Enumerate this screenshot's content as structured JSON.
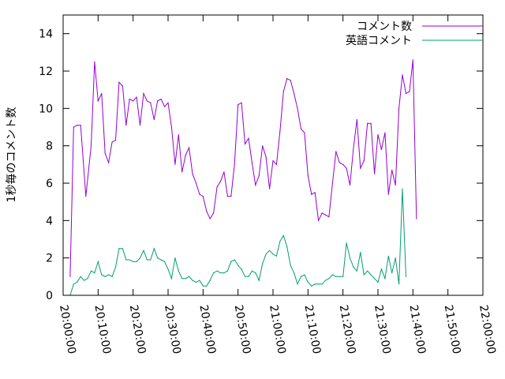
{
  "chart_data": {
    "type": "line",
    "ylabel": "1秒毎のコメント数",
    "xlabel": "",
    "ylim": [
      0,
      15
    ],
    "xlim": [
      "20:00:00",
      "22:00:00"
    ],
    "yticks": [
      "0",
      "2",
      "4",
      "6",
      "8",
      "10",
      "12",
      "14"
    ],
    "xticks": [
      "20:00:00",
      "20:10:00",
      "20:20:00",
      "20:30:00",
      "20:40:00",
      "20:50:00",
      "21:00:00",
      "21:10:00",
      "21:20:00",
      "21:30:00",
      "21:40:00",
      "21:50:00",
      "22:00:00"
    ],
    "grid": false,
    "legend_position": "top-right",
    "series": [
      {
        "name": "コメント数",
        "color": "#9400d3",
        "points": [
          [
            "20:02:00",
            1.0
          ],
          [
            "20:03:00",
            9.0
          ],
          [
            "20:04:00",
            9.1
          ],
          [
            "20:05:00",
            9.1
          ],
          [
            "20:06:30",
            5.3
          ],
          [
            "20:08:00",
            8.0
          ],
          [
            "20:09:00",
            12.5
          ],
          [
            "20:10:00",
            10.4
          ],
          [
            "20:11:00",
            10.8
          ],
          [
            "20:12:00",
            7.6
          ],
          [
            "20:13:00",
            7.1
          ],
          [
            "20:14:00",
            8.2
          ],
          [
            "20:15:00",
            8.3
          ],
          [
            "20:16:00",
            11.4
          ],
          [
            "20:17:00",
            11.2
          ],
          [
            "20:18:00",
            9.1
          ],
          [
            "20:19:00",
            10.5
          ],
          [
            "20:20:00",
            10.4
          ],
          [
            "20:21:00",
            10.6
          ],
          [
            "20:22:00",
            9.1
          ],
          [
            "20:23:00",
            10.8
          ],
          [
            "20:24:00",
            10.4
          ],
          [
            "20:25:00",
            10.3
          ],
          [
            "20:26:00",
            9.4
          ],
          [
            "20:27:00",
            10.4
          ],
          [
            "20:28:00",
            10.5
          ],
          [
            "20:29:00",
            10.1
          ],
          [
            "20:30:00",
            10.3
          ],
          [
            "20:31:00",
            9.0
          ],
          [
            "20:32:00",
            7.0
          ],
          [
            "20:33:00",
            8.6
          ],
          [
            "20:34:00",
            6.6
          ],
          [
            "20:35:00",
            7.5
          ],
          [
            "20:36:00",
            7.9
          ],
          [
            "20:37:00",
            6.5
          ],
          [
            "20:38:00",
            6.0
          ],
          [
            "20:39:00",
            5.4
          ],
          [
            "20:40:00",
            5.3
          ],
          [
            "20:41:00",
            4.5
          ],
          [
            "20:42:00",
            4.1
          ],
          [
            "20:43:00",
            4.4
          ],
          [
            "20:44:00",
            5.8
          ],
          [
            "20:45:00",
            6.1
          ],
          [
            "20:46:00",
            6.6
          ],
          [
            "20:47:00",
            5.3
          ],
          [
            "20:48:00",
            5.3
          ],
          [
            "20:49:00",
            7.0
          ],
          [
            "20:50:00",
            10.2
          ],
          [
            "20:51:00",
            10.3
          ],
          [
            "20:52:00",
            8.1
          ],
          [
            "20:53:00",
            8.4
          ],
          [
            "20:54:00",
            7.1
          ],
          [
            "20:55:00",
            5.9
          ],
          [
            "20:56:00",
            6.4
          ],
          [
            "20:57:00",
            8.0
          ],
          [
            "20:58:00",
            7.4
          ],
          [
            "20:59:00",
            5.7
          ],
          [
            "21:00:00",
            7.2
          ],
          [
            "21:01:00",
            7.0
          ],
          [
            "21:02:00",
            8.8
          ],
          [
            "21:03:00",
            10.9
          ],
          [
            "21:04:00",
            11.6
          ],
          [
            "21:05:00",
            11.5
          ],
          [
            "21:06:00",
            10.8
          ],
          [
            "21:07:00",
            10.0
          ],
          [
            "21:08:00",
            8.9
          ],
          [
            "21:09:00",
            8.7
          ],
          [
            "21:10:00",
            6.4
          ],
          [
            "21:11:00",
            5.4
          ],
          [
            "21:12:00",
            5.5
          ],
          [
            "21:13:00",
            4.0
          ],
          [
            "21:14:00",
            4.4
          ],
          [
            "21:15:00",
            4.3
          ],
          [
            "21:16:00",
            4.2
          ],
          [
            "21:17:00",
            6.0
          ],
          [
            "21:18:00",
            7.7
          ],
          [
            "21:19:00",
            7.1
          ],
          [
            "21:20:00",
            7.0
          ],
          [
            "21:21:00",
            6.8
          ],
          [
            "21:22:00",
            5.9
          ],
          [
            "21:23:00",
            7.9
          ],
          [
            "21:24:00",
            9.4
          ],
          [
            "21:25:00",
            6.8
          ],
          [
            "21:26:00",
            7.2
          ],
          [
            "21:27:00",
            9.2
          ],
          [
            "21:28:00",
            9.2
          ],
          [
            "21:29:00",
            6.5
          ],
          [
            "21:30:00",
            8.6
          ],
          [
            "21:31:00",
            7.8
          ],
          [
            "21:32:00",
            8.7
          ],
          [
            "21:33:00",
            5.4
          ],
          [
            "21:34:00",
            6.7
          ],
          [
            "21:35:00",
            5.9
          ],
          [
            "21:36:00",
            10.0
          ],
          [
            "21:37:00",
            11.8
          ],
          [
            "21:38:00",
            10.8
          ],
          [
            "21:39:00",
            10.9
          ],
          [
            "21:40:00",
            12.6
          ],
          [
            "21:41:00",
            4.1
          ]
        ]
      },
      {
        "name": "英語コメント",
        "color": "#009e73",
        "points": [
          [
            "20:02:00",
            0.0
          ],
          [
            "20:03:00",
            0.6
          ],
          [
            "20:04:00",
            0.7
          ],
          [
            "20:05:00",
            1.0
          ],
          [
            "20:06:00",
            0.8
          ],
          [
            "20:07:00",
            0.9
          ],
          [
            "20:08:00",
            1.3
          ],
          [
            "20:09:00",
            1.2
          ],
          [
            "20:10:00",
            1.8
          ],
          [
            "20:11:00",
            1.1
          ],
          [
            "20:12:00",
            1.0
          ],
          [
            "20:13:00",
            1.1
          ],
          [
            "20:14:00",
            1.0
          ],
          [
            "20:15:00",
            1.5
          ],
          [
            "20:16:00",
            2.5
          ],
          [
            "20:17:00",
            2.5
          ],
          [
            "20:18:00",
            1.9
          ],
          [
            "20:19:00",
            1.9
          ],
          [
            "20:20:00",
            1.8
          ],
          [
            "20:21:00",
            1.8
          ],
          [
            "20:22:00",
            2.0
          ],
          [
            "20:23:00",
            2.4
          ],
          [
            "20:24:00",
            1.9
          ],
          [
            "20:25:00",
            1.9
          ],
          [
            "20:26:00",
            2.5
          ],
          [
            "20:27:00",
            2.0
          ],
          [
            "20:28:00",
            1.9
          ],
          [
            "20:29:00",
            1.8
          ],
          [
            "20:30:00",
            1.4
          ],
          [
            "20:31:00",
            0.9
          ],
          [
            "20:32:00",
            2.0
          ],
          [
            "20:33:00",
            1.3
          ],
          [
            "20:34:00",
            0.9
          ],
          [
            "20:35:00",
            0.9
          ],
          [
            "20:36:00",
            1.0
          ],
          [
            "20:37:00",
            0.8
          ],
          [
            "20:38:00",
            0.7
          ],
          [
            "20:39:00",
            0.8
          ],
          [
            "20:40:00",
            0.5
          ],
          [
            "20:41:00",
            0.5
          ],
          [
            "20:42:00",
            0.8
          ],
          [
            "20:43:00",
            1.2
          ],
          [
            "20:44:00",
            1.3
          ],
          [
            "20:45:00",
            1.2
          ],
          [
            "20:46:00",
            1.2
          ],
          [
            "20:47:00",
            1.3
          ],
          [
            "20:48:00",
            1.8
          ],
          [
            "20:49:00",
            1.9
          ],
          [
            "20:50:00",
            1.6
          ],
          [
            "20:51:00",
            1.4
          ],
          [
            "20:52:00",
            1.0
          ],
          [
            "20:53:00",
            1.0
          ],
          [
            "20:54:00",
            1.3
          ],
          [
            "20:55:00",
            1.2
          ],
          [
            "20:56:00",
            0.8
          ],
          [
            "20:57:00",
            1.7
          ],
          [
            "20:58:00",
            2.2
          ],
          [
            "20:59:00",
            2.4
          ],
          [
            "21:00:00",
            2.2
          ],
          [
            "21:01:00",
            2.1
          ],
          [
            "21:02:00",
            2.9
          ],
          [
            "21:03:00",
            3.2
          ],
          [
            "21:04:00",
            2.6
          ],
          [
            "21:05:00",
            1.6
          ],
          [
            "21:06:00",
            1.2
          ],
          [
            "21:07:00",
            0.6
          ],
          [
            "21:08:00",
            1.0
          ],
          [
            "21:09:00",
            1.1
          ],
          [
            "21:10:00",
            0.7
          ],
          [
            "21:11:00",
            0.5
          ],
          [
            "21:12:00",
            0.6
          ],
          [
            "21:13:00",
            0.6
          ],
          [
            "21:14:00",
            0.6
          ],
          [
            "21:15:00",
            0.8
          ],
          [
            "21:16:00",
            0.9
          ],
          [
            "21:17:00",
            1.1
          ],
          [
            "21:18:00",
            1.0
          ],
          [
            "21:19:00",
            1.0
          ],
          [
            "21:20:00",
            1.0
          ],
          [
            "21:21:00",
            2.8
          ],
          [
            "21:22:00",
            2.0
          ],
          [
            "21:23:00",
            1.5
          ],
          [
            "21:24:00",
            1.3
          ],
          [
            "21:25:00",
            2.3
          ],
          [
            "21:26:00",
            1.1
          ],
          [
            "21:27:00",
            1.3
          ],
          [
            "21:28:00",
            1.1
          ],
          [
            "21:29:00",
            0.9
          ],
          [
            "21:30:00",
            0.7
          ],
          [
            "21:31:00",
            1.4
          ],
          [
            "21:32:00",
            0.9
          ],
          [
            "21:33:00",
            2.1
          ],
          [
            "21:34:00",
            1.2
          ],
          [
            "21:35:00",
            2.0
          ],
          [
            "21:36:00",
            0.6
          ],
          [
            "21:37:00",
            5.7
          ],
          [
            "21:38:00",
            1.0
          ]
        ]
      }
    ]
  }
}
